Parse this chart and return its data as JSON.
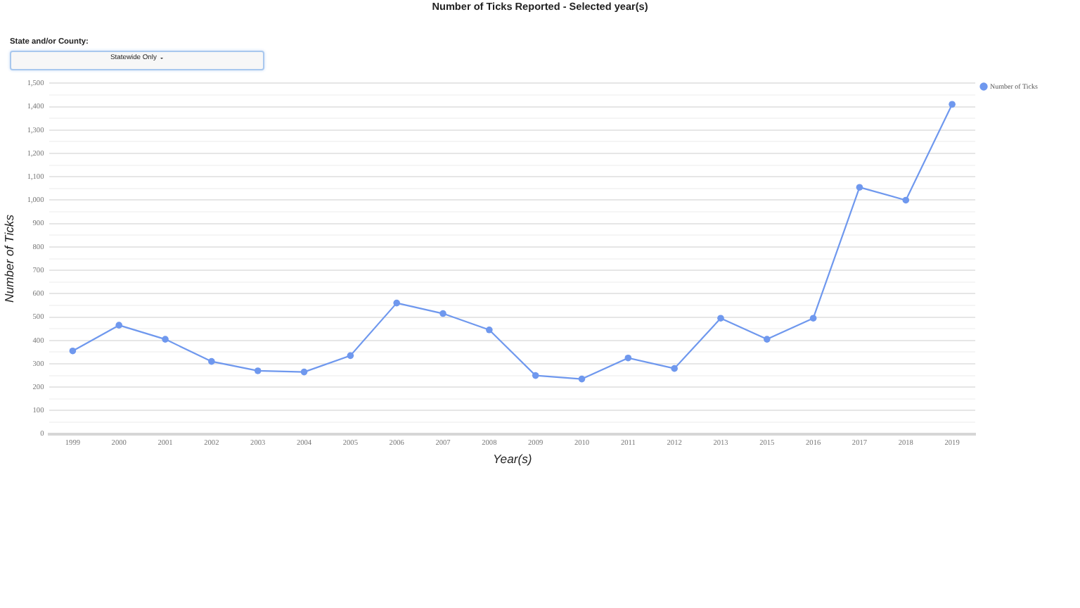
{
  "chart_data": {
    "type": "line",
    "title": "Number of Ticks Reported - Selected year(s)",
    "xlabel": "Year(s)",
    "ylabel": "Number of Ticks",
    "annotations": [
      "State and/or County:",
      "Statewide Only"
    ],
    "categories": [
      "1999",
      "2000",
      "2001",
      "2002",
      "2003",
      "2004",
      "2005",
      "2006",
      "2007",
      "2008",
      "2009",
      "2010",
      "2011",
      "2012",
      "2013",
      "2015",
      "2016",
      "2017",
      "2018",
      "2019"
    ],
    "series": [
      {
        "name": "Number of Ticks",
        "color": "#6f98ee",
        "values": [
          355,
          465,
          405,
          310,
          270,
          265,
          335,
          560,
          515,
          445,
          250,
          235,
          325,
          280,
          495,
          405,
          495,
          1055,
          1000,
          1410
        ]
      }
    ],
    "ylim": [
      0,
      1500
    ],
    "yticks": [
      0,
      {
        "value": 50,
        "label": null
      },
      100,
      {
        "value": 150,
        "label": null
      },
      200,
      {
        "value": 250,
        "label": null
      },
      300,
      {
        "value": 350,
        "label": null
      },
      400,
      {
        "value": 450,
        "label": null
      },
      500,
      {
        "value": 550,
        "label": null
      },
      600,
      {
        "value": 650,
        "label": null
      },
      700,
      {
        "value": 750,
        "label": null
      },
      800,
      {
        "value": 850,
        "label": null
      },
      900,
      {
        "value": 950,
        "label": null
      },
      {
        "value": 1000,
        "label": "1,000"
      },
      {
        "value": 1050,
        "label": null
      },
      {
        "value": 1100,
        "label": "1,100"
      },
      {
        "value": 1150,
        "label": null
      },
      {
        "value": 1200,
        "label": "1,200"
      },
      {
        "value": 1250,
        "label": null
      },
      {
        "value": 1300,
        "label": "1,300"
      },
      {
        "value": 1350,
        "label": null
      },
      {
        "value": 1400,
        "label": "1,400"
      },
      {
        "value": 1450,
        "label": null
      },
      {
        "value": 1500,
        "label": "1,500"
      }
    ],
    "grid": "y",
    "legend": "top right",
    "marker": "circle",
    "line_style": "solid"
  }
}
